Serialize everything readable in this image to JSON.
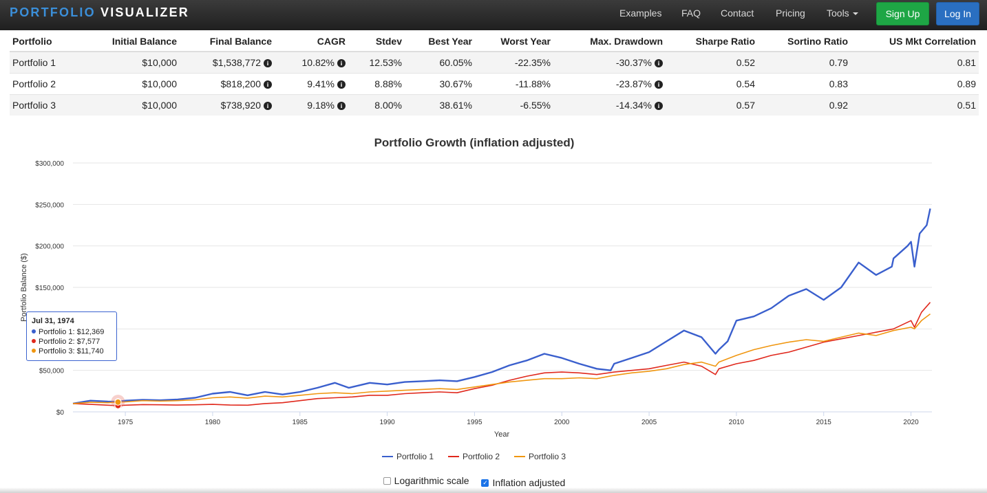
{
  "brand": {
    "part1": "PORTFOLIO",
    "part2": "VISUALIZER"
  },
  "nav": {
    "links": [
      "Examples",
      "FAQ",
      "Contact",
      "Pricing"
    ],
    "tools": "Tools",
    "signup": "Sign Up",
    "login": "Log In"
  },
  "table": {
    "headers": [
      "Portfolio",
      "Initial Balance",
      "Final Balance",
      "CAGR",
      "Stdev",
      "Best Year",
      "Worst Year",
      "Max. Drawdown",
      "Sharpe Ratio",
      "Sortino Ratio",
      "US Mkt Correlation"
    ],
    "rows": [
      {
        "name": "Portfolio 1",
        "initial": "$10,000",
        "final": "$1,538,772",
        "cagr": "10.82%",
        "stdev": "12.53%",
        "best": "60.05%",
        "worst": "-22.35%",
        "drawdown": "-30.37%",
        "sharpe": "0.52",
        "sortino": "0.79",
        "corr": "0.81"
      },
      {
        "name": "Portfolio 2",
        "initial": "$10,000",
        "final": "$818,200",
        "cagr": "9.41%",
        "stdev": "8.88%",
        "best": "30.67%",
        "worst": "-11.88%",
        "drawdown": "-23.87%",
        "sharpe": "0.54",
        "sortino": "0.83",
        "corr": "0.89"
      },
      {
        "name": "Portfolio 3",
        "initial": "$10,000",
        "final": "$738,920",
        "cagr": "9.18%",
        "stdev": "8.00%",
        "best": "38.61%",
        "worst": "-6.55%",
        "drawdown": "-14.34%",
        "sharpe": "0.57",
        "sortino": "0.92",
        "corr": "0.51"
      }
    ]
  },
  "tooltip": {
    "date": "Jul 31, 1974",
    "rows": [
      "Portfolio 1: $12,369",
      "Portfolio 2: $7,577",
      "Portfolio 3: $11,740"
    ]
  },
  "controls": {
    "log_label": "Logarithmic scale",
    "log_checked": false,
    "infl_label": "Inflation adjusted",
    "infl_checked": true
  },
  "chart_data": {
    "type": "line",
    "title": "Portfolio Growth (inflation adjusted)",
    "xlabel": "Year",
    "ylabel": "Portfolio Balance ($)",
    "xlim": [
      1972,
      2021.2
    ],
    "ylim": [
      0,
      300000
    ],
    "xticks": [
      1975,
      1980,
      1985,
      1990,
      1995,
      2000,
      2005,
      2010,
      2015,
      2020
    ],
    "yticks": [
      0,
      50000,
      100000,
      150000,
      200000,
      250000,
      300000
    ],
    "ytick_labels": [
      "$0",
      "$50,000",
      "$100,000",
      "$150,000",
      "$200,000",
      "$250,000",
      "$300,000"
    ],
    "grid": true,
    "legend": "bottom",
    "series": [
      {
        "name": "Portfolio 1",
        "color": "#3a5fcd",
        "x": [
          1972,
          1973,
          1974,
          1974.58,
          1975,
          1976,
          1977,
          1978,
          1979,
          1980,
          1981,
          1982,
          1983,
          1984,
          1985,
          1986,
          1987,
          1987.8,
          1988,
          1989,
          1990,
          1991,
          1992,
          1993,
          1994,
          1995,
          1996,
          1997,
          1998,
          1999,
          2000,
          2001,
          2002,
          2002.8,
          2003,
          2004,
          2005,
          2006,
          2007,
          2008,
          2008.8,
          2009,
          2009.5,
          2010,
          2011,
          2012,
          2013,
          2014,
          2015,
          2016,
          2017,
          2018,
          2018.9,
          2019,
          2019.8,
          2020,
          2020.2,
          2020.5,
          2020.9,
          2021.1
        ],
        "y": [
          10000,
          13500,
          12500,
          12369,
          13500,
          14500,
          14000,
          15000,
          17000,
          22000,
          24000,
          20000,
          24000,
          21000,
          24000,
          29000,
          35000,
          29000,
          30000,
          35000,
          33000,
          36000,
          37000,
          38000,
          37000,
          42000,
          48000,
          56000,
          62000,
          70000,
          65000,
          58000,
          52000,
          50000,
          58000,
          65000,
          72000,
          85000,
          98000,
          90000,
          70000,
          75000,
          85000,
          110000,
          115000,
          125000,
          140000,
          148000,
          135000,
          150000,
          180000,
          165000,
          175000,
          185000,
          200000,
          205000,
          175000,
          215000,
          225000,
          245000
        ]
      },
      {
        "name": "Portfolio 2",
        "color": "#e0281c",
        "x": [
          1972,
          1973,
          1974,
          1974.58,
          1975,
          1976,
          1977,
          1978,
          1979,
          1980,
          1981,
          1982,
          1983,
          1984,
          1985,
          1986,
          1987,
          1988,
          1989,
          1990,
          1991,
          1992,
          1993,
          1994,
          1995,
          1996,
          1997,
          1998,
          1999,
          2000,
          2001,
          2002,
          2003,
          2004,
          2005,
          2006,
          2007,
          2008,
          2008.8,
          2009,
          2010,
          2011,
          2012,
          2013,
          2014,
          2015,
          2016,
          2017,
          2018,
          2019,
          2020,
          2020.2,
          2020.6,
          2021.1
        ],
        "y": [
          10000,
          9000,
          8000,
          7577,
          8000,
          8800,
          8500,
          8200,
          8500,
          9000,
          8200,
          8000,
          10000,
          11000,
          13500,
          16000,
          17000,
          18000,
          20000,
          20000,
          22000,
          23000,
          24000,
          23000,
          28000,
          32000,
          38000,
          43000,
          47000,
          48000,
          47000,
          45000,
          48000,
          50000,
          52000,
          56000,
          60000,
          55000,
          45000,
          52000,
          58000,
          62000,
          68000,
          72000,
          78000,
          84000,
          88000,
          92000,
          96000,
          100000,
          110000,
          102000,
          120000,
          132000
        ]
      },
      {
        "name": "Portfolio 3",
        "color": "#f0960f",
        "x": [
          1972,
          1973,
          1974,
          1974.58,
          1975,
          1976,
          1977,
          1978,
          1979,
          1980,
          1981,
          1982,
          1983,
          1984,
          1985,
          1986,
          1987,
          1988,
          1989,
          1990,
          1991,
          1992,
          1993,
          1994,
          1995,
          1996,
          1997,
          1998,
          1999,
          2000,
          2001,
          2002,
          2003,
          2004,
          2005,
          2006,
          2007,
          2008,
          2008.8,
          2009,
          2010,
          2011,
          2012,
          2013,
          2014,
          2015,
          2016,
          2017,
          2018,
          2019,
          2020,
          2020.2,
          2020.6,
          2021.1
        ],
        "y": [
          10000,
          11500,
          11000,
          11740,
          12000,
          13500,
          13000,
          13500,
          14500,
          17000,
          18000,
          16500,
          19000,
          18000,
          20000,
          22000,
          23000,
          22000,
          24000,
          25000,
          26000,
          27000,
          28000,
          27000,
          30000,
          33000,
          36000,
          38000,
          40000,
          40000,
          41000,
          40000,
          44000,
          47000,
          49000,
          52000,
          57000,
          60000,
          55000,
          60000,
          68000,
          75000,
          80000,
          84000,
          87000,
          85000,
          90000,
          95000,
          92000,
          98000,
          102000,
          100000,
          110000,
          118000
        ]
      }
    ]
  }
}
